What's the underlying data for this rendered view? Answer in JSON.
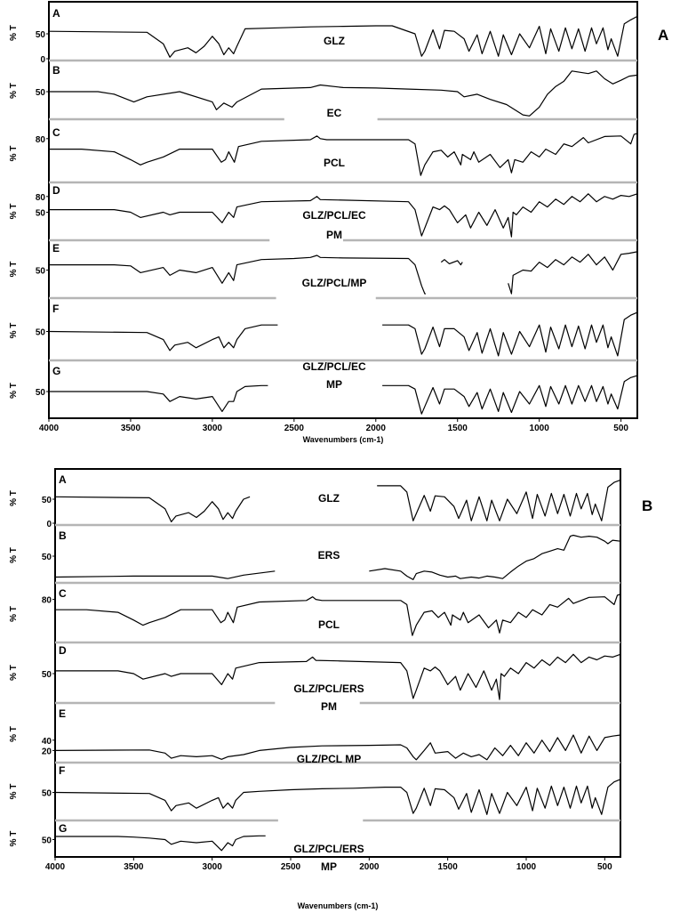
{
  "chart_data": [
    {
      "type": "line",
      "panel_label": "A",
      "xlabel": "Wavenumbers (cm-1)",
      "ylabel": "% T",
      "x_ticks": [
        "4000",
        "3500",
        "3000",
        "2500",
        "2000",
        "1500",
        "1000",
        "500"
      ],
      "xlim": [
        4000,
        400
      ],
      "series": [
        {
          "letter": "A",
          "name": "GLZ",
          "ticks": [
            "50",
            "0"
          ],
          "x": [
            4000,
            3400,
            3300,
            3260,
            3230,
            3150,
            3100,
            3050,
            3000,
            2960,
            2930,
            2900,
            2870,
            2850,
            2800,
            2600,
            2400,
            2200,
            2000,
            1900,
            1760,
            1720,
            1700,
            1650,
            1610,
            1580,
            1520,
            1460,
            1430,
            1380,
            1350,
            1300,
            1250,
            1220,
            1170,
            1120,
            1060,
            1000,
            960,
            930,
            880,
            840,
            800,
            760,
            720,
            680,
            650,
            610,
            580,
            560,
            520,
            480,
            440,
            400
          ],
          "y": [
            55,
            53,
            30,
            3,
            15,
            22,
            12,
            25,
            45,
            30,
            8,
            22,
            10,
            25,
            60,
            62,
            64,
            65,
            66,
            66,
            50,
            5,
            15,
            58,
            20,
            57,
            55,
            40,
            15,
            48,
            10,
            55,
            5,
            48,
            8,
            50,
            22,
            65,
            10,
            60,
            15,
            62,
            20,
            60,
            15,
            62,
            30,
            62,
            18,
            40,
            5,
            70,
            78,
            85
          ]
        },
        {
          "letter": "B",
          "name": "EC",
          "ticks": [
            "50"
          ],
          "x": [
            4000,
            3700,
            3600,
            3480,
            3400,
            3200,
            3000,
            2975,
            2930,
            2880,
            2850,
            2700,
            2400,
            2340,
            2200,
            2000,
            1800,
            1600,
            1500,
            1460,
            1380,
            1300,
            1200,
            1100,
            1060,
            1000,
            950,
            900,
            850,
            800,
            700,
            650,
            600,
            550,
            500,
            450,
            400
          ],
          "y": [
            50,
            50,
            45,
            30,
            40,
            50,
            30,
            15,
            28,
            20,
            30,
            55,
            58,
            63,
            58,
            57,
            55,
            53,
            50,
            40,
            45,
            35,
            25,
            5,
            3,
            20,
            45,
            60,
            70,
            90,
            85,
            90,
            75,
            65,
            72,
            80,
            82
          ]
        },
        {
          "letter": "C",
          "name": "PCL",
          "ticks": [
            "80"
          ],
          "x": [
            4000,
            3800,
            3600,
            3500,
            3440,
            3400,
            3300,
            3200,
            3000,
            2945,
            2920,
            2900,
            2865,
            2840,
            2700,
            2400,
            2360,
            2340,
            2300,
            2000,
            1800,
            1760,
            1725,
            1700,
            1650,
            1600,
            1560,
            1520,
            1480,
            1470,
            1420,
            1400,
            1370,
            1300,
            1240,
            1190,
            1170,
            1150,
            1100,
            1050,
            1000,
            960,
            900,
            850,
            800,
            730,
            700,
            600,
            500,
            440,
            420,
            400
          ],
          "y": [
            60,
            60,
            55,
            40,
            30,
            35,
            45,
            60,
            60,
            35,
            40,
            55,
            35,
            65,
            75,
            78,
            85,
            80,
            78,
            78,
            78,
            70,
            10,
            30,
            55,
            58,
            45,
            55,
            30,
            50,
            40,
            55,
            35,
            50,
            25,
            40,
            15,
            40,
            35,
            55,
            45,
            60,
            50,
            70,
            65,
            82,
            72,
            84,
            85,
            70,
            88,
            90
          ]
        },
        {
          "letter": "D",
          "name": "GLZ/PCL/EC PM",
          "ticks": [
            "80",
            "50"
          ],
          "x": [
            4000,
            3600,
            3500,
            3440,
            3300,
            3260,
            3200,
            3000,
            2940,
            2900,
            2870,
            2850,
            2700,
            2400,
            2360,
            2340,
            2200,
            1800,
            1760,
            1720,
            1700,
            1650,
            1610,
            1580,
            1550,
            1500,
            1450,
            1420,
            1370,
            1320,
            1270,
            1220,
            1190,
            1170,
            1160,
            1140,
            1100,
            1050,
            1000,
            950,
            900,
            850,
            800,
            750,
            700,
            650,
            600,
            550,
            500,
            450,
            400
          ],
          "y": [
            55,
            55,
            50,
            40,
            50,
            45,
            50,
            50,
            30,
            50,
            40,
            60,
            70,
            72,
            80,
            74,
            73,
            70,
            55,
            5,
            20,
            60,
            55,
            62,
            55,
            30,
            45,
            20,
            50,
            25,
            55,
            20,
            40,
            3,
            50,
            45,
            60,
            50,
            70,
            60,
            75,
            65,
            80,
            70,
            85,
            70,
            80,
            75,
            82,
            80,
            85
          ]
        },
        {
          "letter": "E",
          "name": "",
          "ticks": [
            "50"
          ],
          "x": [
            4000,
            3600,
            3500,
            3440,
            3300,
            3260,
            3200,
            3100,
            3000,
            2940,
            2900,
            2870,
            2850,
            2700,
            2500,
            2400,
            2360,
            2340,
            2200,
            1800,
            1760,
            1720,
            1700,
            1695
          ],
          "y": [
            60,
            60,
            58,
            45,
            55,
            40,
            50,
            45,
            55,
            25,
            45,
            30,
            60,
            70,
            72,
            74,
            78,
            74,
            73,
            72,
            60,
            20,
            5,
            5
          ]
        },
        {
          "letter": "F",
          "name": "GLZ/PCL/MP",
          "ticks": [
            "50"
          ],
          "x": [
            4000,
            3400,
            3300,
            3260,
            3230,
            3150,
            3100,
            3000,
            2960,
            2930,
            2900,
            2870,
            2850,
            2800,
            2700,
            2600
          ],
          "y": [
            50,
            48,
            35,
            15,
            25,
            30,
            20,
            35,
            40,
            20,
            30,
            20,
            35,
            55,
            62,
            62
          ]
        },
        {
          "letter": "G",
          "name": "GLZ/PCL/EC MP",
          "ticks": [
            "50"
          ],
          "x": [
            4000,
            3600,
            3400,
            3300,
            3260,
            3200,
            3100,
            3000,
            2940,
            2900,
            2870,
            2850,
            2800,
            2700,
            2660
          ],
          "y": [
            50,
            50,
            50,
            45,
            30,
            40,
            35,
            40,
            10,
            30,
            30,
            50,
            60,
            62,
            62
          ]
        }
      ]
    },
    {
      "type": "line",
      "panel_label": "B",
      "xlabel": "Wavenumbers (cm-1)",
      "ylabel": "% T",
      "x_ticks": [
        "4000",
        "3500",
        "3000",
        "2500",
        "2000",
        "1500",
        "1000",
        "500"
      ],
      "xlim": [
        4000,
        400
      ],
      "series": [
        {
          "letter": "A",
          "name": "GLZ",
          "ticks": [
            "50",
            "0"
          ],
          "x": [
            4000,
            3400,
            3300,
            3260,
            3230,
            3150,
            3100,
            3050,
            3000,
            2960,
            2930,
            2900,
            2870,
            2850,
            2800,
            2760
          ],
          "y": [
            55,
            53,
            30,
            3,
            15,
            22,
            12,
            25,
            45,
            30,
            8,
            22,
            10,
            25,
            50,
            55
          ]
        },
        {
          "letter": "B",
          "name": "ERS",
          "ticks": [
            "50"
          ],
          "x": [
            4000,
            3500,
            3000,
            2900,
            2800,
            2600
          ],
          "y": [
            8,
            10,
            10,
            5,
            12,
            20
          ]
        },
        {
          "letter": "C",
          "name": "PCL",
          "ticks": [
            "80"
          ],
          "x": [
            4000,
            3800,
            3600,
            3500,
            3440,
            3400,
            3300,
            3200,
            3000,
            2945,
            2920,
            2900,
            2865,
            2840,
            2700,
            2400,
            2360,
            2340,
            2300,
            2000,
            1800,
            1760,
            1725,
            1700,
            1650,
            1600,
            1560,
            1520,
            1480,
            1470,
            1420,
            1400,
            1370,
            1300,
            1240,
            1190,
            1170,
            1150,
            1100,
            1050,
            1000,
            960,
            900,
            850,
            800,
            730,
            700,
            600,
            500,
            440,
            420,
            400
          ],
          "y": [
            60,
            60,
            55,
            40,
            30,
            35,
            45,
            60,
            60,
            35,
            40,
            55,
            35,
            65,
            75,
            78,
            85,
            80,
            78,
            78,
            78,
            70,
            10,
            30,
            55,
            58,
            45,
            55,
            30,
            50,
            40,
            55,
            35,
            50,
            25,
            40,
            15,
            40,
            35,
            55,
            45,
            60,
            50,
            70,
            65,
            82,
            72,
            84,
            85,
            70,
            88,
            90
          ]
        },
        {
          "letter": "D",
          "name": "GLZ/PCL/ERS PM",
          "ticks": [
            "50"
          ],
          "x": [
            4000,
            3600,
            3500,
            3440,
            3300,
            3260,
            3200,
            3000,
            2940,
            2900,
            2870,
            2850,
            2700,
            2400,
            2360,
            2340,
            2200,
            1800,
            1760,
            1720,
            1700,
            1650,
            1610,
            1580,
            1550,
            1500,
            1450,
            1420,
            1370,
            1320,
            1270,
            1220,
            1190,
            1170,
            1160,
            1140,
            1100,
            1050,
            1000,
            950,
            900,
            850,
            800,
            750,
            700,
            650,
            600,
            550,
            500,
            450,
            400
          ],
          "y": [
            55,
            55,
            50,
            40,
            50,
            45,
            50,
            50,
            30,
            50,
            40,
            60,
            70,
            72,
            80,
            74,
            73,
            70,
            55,
            5,
            20,
            60,
            55,
            62,
            55,
            30,
            45,
            20,
            50,
            25,
            55,
            20,
            40,
            3,
            50,
            45,
            60,
            50,
            70,
            60,
            75,
            65,
            80,
            70,
            85,
            70,
            80,
            75,
            82,
            80,
            85
          ]
        },
        {
          "letter": "E",
          "name": "GLZ/PCL MP",
          "ticks": [
            "40",
            "20"
          ],
          "x": [
            4000,
            3400,
            3300,
            3260,
            3200,
            3100,
            3000,
            2940,
            2900,
            2800,
            2700,
            2500,
            2300,
            2000,
            1800,
            1760,
            1720,
            1700,
            1650,
            1610,
            1580,
            1500,
            1450,
            1400,
            1350,
            1300,
            1250,
            1200,
            1150,
            1100,
            1050,
            1000,
            950,
            900,
            850,
            800,
            750,
            700,
            650,
            600,
            550,
            500,
            450,
            400
          ],
          "y": [
            20,
            21,
            15,
            5,
            10,
            8,
            10,
            3,
            8,
            12,
            20,
            26,
            29,
            30,
            31,
            25,
            8,
            2,
            20,
            35,
            15,
            18,
            5,
            15,
            8,
            12,
            2,
            25,
            10,
            30,
            10,
            35,
            15,
            40,
            18,
            45,
            20,
            50,
            15,
            48,
            20,
            45,
            48,
            50
          ]
        },
        {
          "letter": "F",
          "name": "",
          "ticks": [
            "50"
          ],
          "x": [
            4000,
            3400,
            3300,
            3260,
            3230,
            3150,
            3100,
            3000,
            2960,
            2930,
            2900,
            2870,
            2850,
            2800,
            2700,
            2500,
            2300,
            2100,
            1900,
            1800,
            1760,
            1720,
            1700,
            1650,
            1610,
            1580,
            1520,
            1460,
            1430,
            1380,
            1350,
            1300,
            1250,
            1220,
            1170,
            1120,
            1060,
            1000,
            960,
            930,
            880,
            840,
            800,
            760,
            720,
            680,
            650,
            610,
            580,
            560,
            520,
            480,
            440,
            400
          ],
          "y": [
            50,
            48,
            35,
            15,
            25,
            30,
            20,
            35,
            40,
            20,
            30,
            20,
            35,
            50,
            52,
            55,
            57,
            58,
            60,
            60,
            50,
            10,
            20,
            58,
            25,
            57,
            55,
            40,
            18,
            48,
            12,
            55,
            8,
            48,
            10,
            50,
            25,
            60,
            15,
            58,
            20,
            62,
            25,
            60,
            20,
            62,
            30,
            62,
            20,
            40,
            8,
            60,
            70,
            75
          ]
        },
        {
          "letter": "G",
          "name": "GLZ/PCL/ERS MP",
          "ticks": [
            "50"
          ],
          "x": [
            4000,
            3600,
            3500,
            3400,
            3300,
            3260,
            3200,
            3100,
            3000,
            2940,
            2900,
            2870,
            2850,
            2800,
            2700,
            2660
          ],
          "y": [
            60,
            60,
            58,
            55,
            50,
            35,
            45,
            40,
            45,
            15,
            40,
            30,
            50,
            60,
            62,
            62
          ]
        }
      ]
    }
  ]
}
